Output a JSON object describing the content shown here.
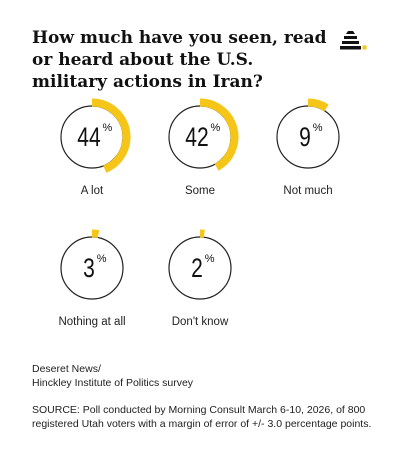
{
  "header": {
    "title": "How much have you seen, read or heard about the U.S. military actions in Iran?",
    "logo_icon": "beehive-icon"
  },
  "chart_data": {
    "type": "donut",
    "title": "How much have you seen, read or heard about the U.S. military actions in Iran?",
    "unit": "%",
    "categories": [
      "A lot",
      "Some",
      "Not much",
      "Nothing at all",
      "Don't know"
    ],
    "values": [
      44,
      42,
      9,
      3,
      2
    ],
    "accent_color": "#F5C518",
    "ring_color": "#222222",
    "grid": false,
    "legend": "none"
  },
  "footer": {
    "credit_line1": "Deseret News/",
    "credit_line2": "Hinckley Institute of Politics survey",
    "source": "SOURCE: Poll conducted by Morning Consult March 6-10, 2026, of 800 registered Utah voters with a margin of error of +/- 3.0 percentage points."
  }
}
